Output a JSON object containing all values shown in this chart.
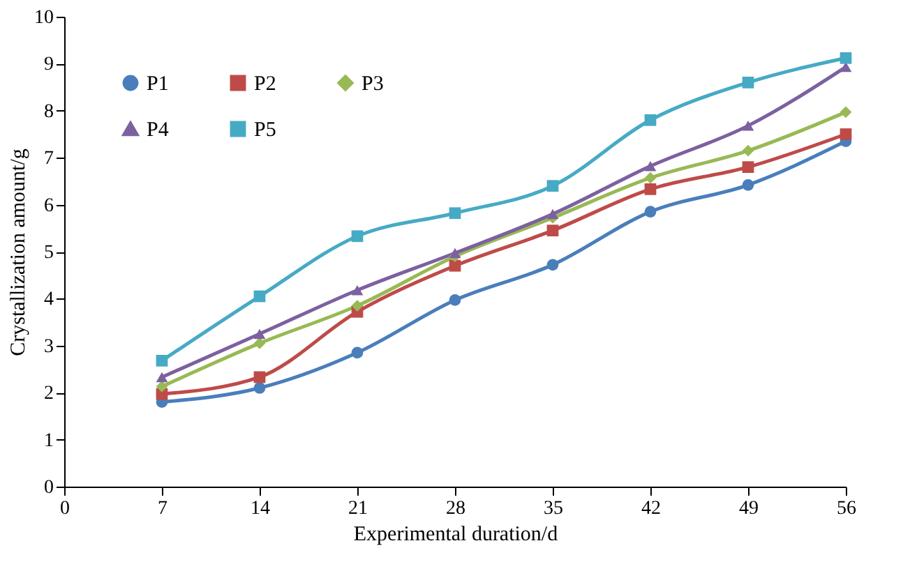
{
  "chart_data": {
    "type": "line",
    "xlabel": "Experimental duration/d",
    "ylabel": "Crystallization amount/g",
    "x": [
      7,
      14,
      21,
      28,
      35,
      42,
      49,
      56
    ],
    "xlim": [
      0,
      56
    ],
    "xticks": [
      0,
      7,
      14,
      21,
      28,
      35,
      42,
      49,
      56
    ],
    "ylim": [
      0,
      10
    ],
    "yticks": [
      0,
      1,
      2,
      3,
      4,
      5,
      6,
      7,
      8,
      9,
      10
    ],
    "grid": false,
    "legend": "top left",
    "series": [
      {
        "name": "P1",
        "color": "#4a7ebb",
        "marker": "circle",
        "values": [
          1.8,
          2.1,
          2.85,
          3.97,
          4.72,
          5.85,
          6.42,
          7.35
        ]
      },
      {
        "name": "P2",
        "color": "#be4b48",
        "marker": "square",
        "values": [
          1.97,
          2.33,
          3.72,
          4.7,
          5.45,
          6.33,
          6.8,
          7.5
        ]
      },
      {
        "name": "P3",
        "color": "#98b954",
        "marker": "diamond",
        "values": [
          2.13,
          3.05,
          3.85,
          4.9,
          5.72,
          6.57,
          7.15,
          7.97
        ]
      },
      {
        "name": "P4",
        "color": "#7d60a0",
        "marker": "triangle",
        "values": [
          2.33,
          3.25,
          4.18,
          4.97,
          5.8,
          6.82,
          7.68,
          8.93
        ]
      },
      {
        "name": "P5",
        "color": "#46aac5",
        "marker": "square",
        "values": [
          2.68,
          4.05,
          5.33,
          5.82,
          6.4,
          7.8,
          8.6,
          9.12
        ]
      }
    ]
  }
}
